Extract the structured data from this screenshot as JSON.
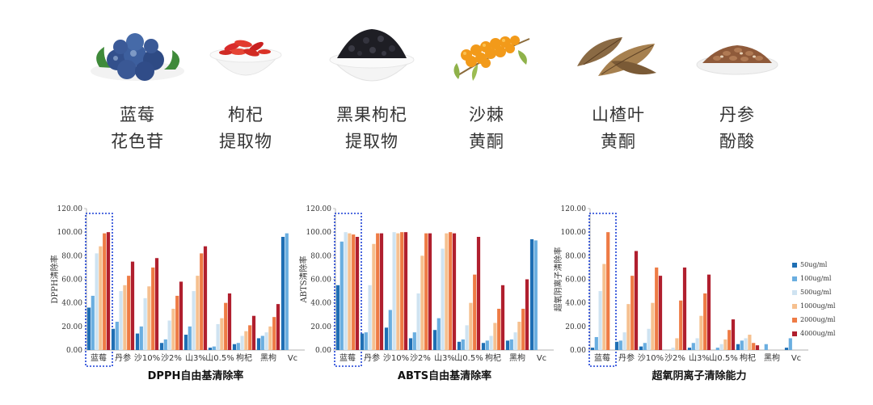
{
  "products": [
    {
      "icon": "blueberry-icon",
      "line1": "蓝莓",
      "line2": "花色苷"
    },
    {
      "icon": "goji-berry-icon",
      "line1": "枸杞",
      "line2": "提取物"
    },
    {
      "icon": "black-goji-icon",
      "line1": "黑果枸杞",
      "line2": "提取物"
    },
    {
      "icon": "sea-buckthorn-icon",
      "line1": "沙棘",
      "line2": "黄酮"
    },
    {
      "icon": "hawthorn-leaf-icon",
      "line1": "山楂叶",
      "line2": "黄酮"
    },
    {
      "icon": "salvia-root-icon",
      "line1": "丹参",
      "line2": "酚酸"
    }
  ],
  "series_colors": [
    "#1f6fb4",
    "#6aaee0",
    "#cfe3f1",
    "#f6c08f",
    "#ee7b45",
    "#b01f2e"
  ],
  "highlight_color": "#1a3fd6",
  "legend": [
    "50ug/ml",
    "100ug/ml",
    "500ug/ml",
    "1000ug/ml",
    "2000ug/ml",
    "4000ug/ml"
  ],
  "chart_data": [
    {
      "type": "bar",
      "title": "DPPH自由基清除率",
      "ylabel": "DPPH清除率",
      "ylim": [
        0,
        120
      ],
      "yticks": [
        "0.00",
        "20.00",
        "40.00",
        "60.00",
        "80.00",
        "100.00",
        "120.00"
      ],
      "categories": [
        "蓝莓",
        "丹参",
        "沙10%",
        "沙2%",
        "山3%",
        "山0.5%",
        "枸杞",
        "黑枸",
        "Vc"
      ],
      "highlight_category": "蓝莓",
      "series": [
        {
          "name": "50ug/ml",
          "values": [
            36,
            18,
            14,
            6,
            13,
            2,
            5,
            10,
            96
          ]
        },
        {
          "name": "100ug/ml",
          "values": [
            46,
            24,
            20,
            9,
            20,
            3,
            6,
            12,
            99
          ]
        },
        {
          "name": "500ug/ml",
          "values": [
            82,
            50,
            44,
            25,
            50,
            22,
            12,
            15,
            0
          ]
        },
        {
          "name": "1000ug/ml",
          "values": [
            88,
            55,
            54,
            35,
            63,
            27,
            16,
            20,
            0
          ]
        },
        {
          "name": "2000ug/ml",
          "values": [
            99,
            63,
            70,
            46,
            82,
            40,
            21,
            28,
            0
          ]
        },
        {
          "name": "4000ug/ml",
          "values": [
            100,
            75,
            78,
            58,
            88,
            48,
            29,
            39,
            0
          ]
        }
      ]
    },
    {
      "type": "bar",
      "title": "ABTS自由基清除率",
      "ylabel": "ABTS清除率",
      "ylim": [
        0,
        120
      ],
      "yticks": [
        "0.00",
        "20.00",
        "40.00",
        "60.00",
        "80.00",
        "100.00",
        "120.00"
      ],
      "categories": [
        "蓝莓",
        "丹参",
        "沙10%",
        "沙2%",
        "山3%",
        "山0.5%",
        "枸杞",
        "黑枸",
        "Vc"
      ],
      "highlight_category": "蓝莓",
      "series": [
        {
          "name": "50ug/ml",
          "values": [
            55,
            14,
            19,
            10,
            17,
            7,
            6,
            8,
            94
          ]
        },
        {
          "name": "100ug/ml",
          "values": [
            92,
            15,
            34,
            15,
            27,
            9,
            8,
            9,
            93
          ]
        },
        {
          "name": "500ug/ml",
          "values": [
            100,
            55,
            100,
            48,
            86,
            21,
            12,
            15,
            0
          ]
        },
        {
          "name": "1000ug/ml",
          "values": [
            99,
            90,
            99,
            80,
            99,
            40,
            23,
            24,
            0
          ]
        },
        {
          "name": "2000ug/ml",
          "values": [
            98,
            99,
            100,
            99,
            100,
            64,
            35,
            35,
            0
          ]
        },
        {
          "name": "4000ug/ml",
          "values": [
            96,
            99,
            100,
            99,
            99,
            96,
            55,
            60,
            0
          ]
        }
      ]
    },
    {
      "type": "bar",
      "title": "超氧阴离子清除能力",
      "ylabel": "超氧阴离子清除率",
      "ylim": [
        0,
        120
      ],
      "yticks": [
        "0.00",
        "20.00",
        "40.00",
        "60.00",
        "80.00",
        "100.00",
        "120.00"
      ],
      "categories": [
        "蓝莓",
        "丹参",
        "沙10%",
        "沙2%",
        "山3%",
        "山0.5%",
        "枸杞",
        "黑枸",
        "Vc"
      ],
      "highlight_category": "蓝莓",
      "series": [
        {
          "name": "50ug/ml",
          "values": [
            2,
            7,
            3,
            0,
            2,
            0,
            5,
            0,
            2
          ]
        },
        {
          "name": "100ug/ml",
          "values": [
            11,
            8,
            6,
            0,
            6,
            2,
            8,
            5,
            10
          ]
        },
        {
          "name": "500ug/ml",
          "values": [
            50,
            15,
            18,
            2,
            10,
            5,
            10,
            0,
            0
          ]
        },
        {
          "name": "1000ug/ml",
          "values": [
            73,
            39,
            40,
            10,
            29,
            9,
            13,
            0,
            0
          ]
        },
        {
          "name": "2000ug/ml",
          "values": [
            100,
            63,
            70,
            42,
            48,
            17,
            6,
            0,
            0
          ]
        },
        {
          "name": "4000ug/ml",
          "values": [
            0,
            84,
            63,
            70,
            64,
            26,
            4,
            0,
            0
          ]
        }
      ]
    }
  ]
}
